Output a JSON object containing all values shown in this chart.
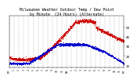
{
  "title_line1": "Milwaukee Weather Outdoor Temp / Dew Point",
  "title_line2": "by Minute  (24 Hours) (Alternate)",
  "title_fontsize": 3.5,
  "bg_color": "#ffffff",
  "grid_color": "#aaaaaa",
  "temp_color": "#cc0000",
  "dew_color": "#0000cc",
  "ylim": [
    8,
    62
  ],
  "yticks": [
    10,
    20,
    30,
    40,
    50
  ],
  "ytick_fontsize": 3.0,
  "xtick_fontsize": 2.2,
  "num_points": 1440,
  "xtick_positions": [
    0,
    60,
    120,
    180,
    240,
    300,
    360,
    420,
    480,
    540,
    600,
    660,
    720,
    780,
    840,
    900,
    960,
    1020,
    1080,
    1140,
    1200,
    1260,
    1320,
    1380,
    1439
  ],
  "xtick_labels": [
    "MT",
    "1",
    "2",
    "3",
    "4",
    "5",
    "6",
    "7",
    "8",
    "9",
    "10",
    "11",
    "NN",
    "1",
    "2",
    "3",
    "4",
    "5",
    "6",
    "7",
    "8",
    "9",
    "10",
    "11",
    "MT"
  ],
  "marker_size": 0.4
}
